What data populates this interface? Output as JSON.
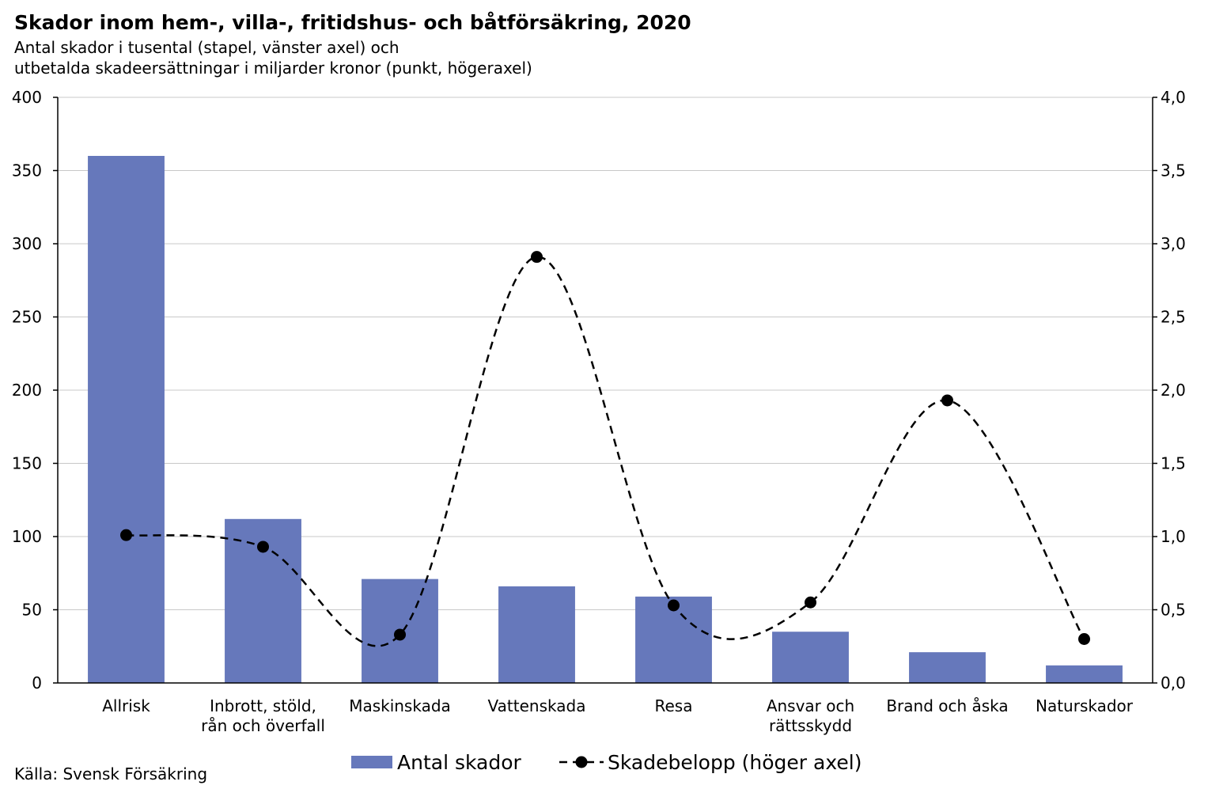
{
  "title": "Skador inom hem-, villa-, fritidshus- och båtförsäkring, 2020",
  "subtitle_line1": "Antal skador i tusental (stapel, vänster axel) och",
  "subtitle_line2": "utbetalda skadeersättningar i miljarder kronor (punkt, högeraxel)",
  "source": "Källa: Svensk Försäkring",
  "colors": {
    "bar": "#6678BB",
    "line": "#000000",
    "grid": "#C8C8C8"
  },
  "chart_data": {
    "type": "bar",
    "categories": [
      [
        "Allrisk"
      ],
      [
        "Inbrott, stöld,",
        "rån och överfall"
      ],
      [
        "Maskinskada"
      ],
      [
        "Vattenskada"
      ],
      [
        "Resa"
      ],
      [
        "Ansvar och",
        "rättsskydd"
      ],
      [
        "Brand och åska"
      ],
      [
        "Naturskador"
      ]
    ],
    "series": [
      {
        "name": "Antal skador",
        "type": "bar",
        "axis": "left",
        "values": [
          360,
          112,
          71,
          66,
          59,
          35,
          21,
          12
        ]
      },
      {
        "name": "Skadebelopp (höger axel)",
        "type": "line",
        "style": "dashed-smooth-with-markers",
        "axis": "right",
        "values": [
          1.01,
          0.93,
          0.33,
          2.91,
          0.53,
          0.55,
          1.93,
          0.3
        ]
      }
    ],
    "yleft": {
      "lim": [
        0,
        400
      ],
      "ticks": [
        "0",
        "50",
        "100",
        "150",
        "200",
        "250",
        "300",
        "350",
        "400"
      ]
    },
    "yright": {
      "lim": [
        0,
        4
      ],
      "ticks": [
        "0,0",
        "0,5",
        "1,0",
        "1,5",
        "2,0",
        "2,5",
        "3,0",
        "3,5",
        "4,0"
      ]
    },
    "grid": true,
    "legend": "bottom-center"
  }
}
